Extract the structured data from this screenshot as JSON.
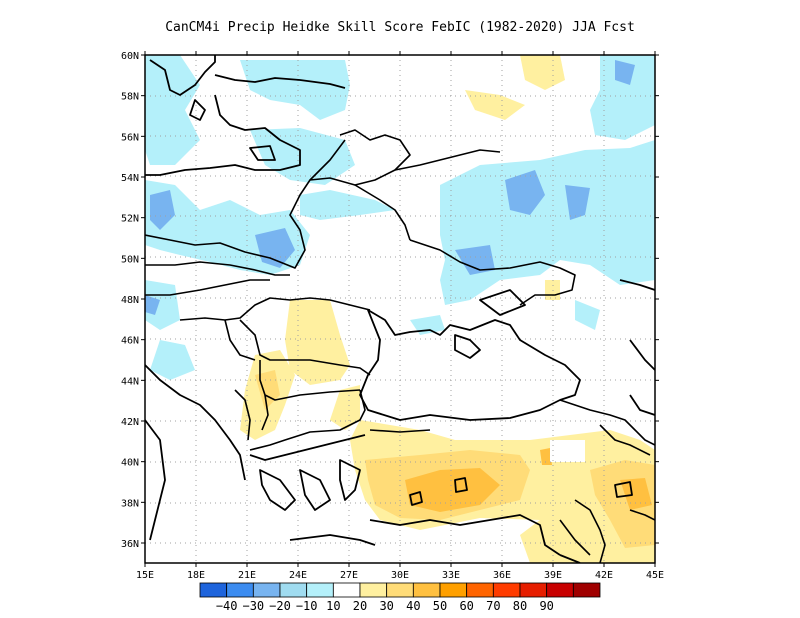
{
  "title": "CanCM4i Precip Heidke Skill Score FebIC (1982-2020) JJA Fcst",
  "lon_ticks": [
    "15E",
    "18E",
    "21E",
    "24E",
    "27E",
    "30E",
    "33E",
    "36E",
    "39E",
    "42E",
    "45E"
  ],
  "lat_ticks": [
    "60N",
    "58N",
    "56N",
    "54N",
    "52N",
    "50N",
    "48N",
    "46N",
    "44N",
    "42N",
    "40N",
    "38N",
    "36N"
  ],
  "colorbar": {
    "colors": [
      "#1e64dc",
      "#3c8cf0",
      "#78b4f0",
      "#a0dcf0",
      "#b4f0fa",
      "#ffffff",
      "#fff0a0",
      "#ffdc78",
      "#ffc040",
      "#ffa000",
      "#ff6400",
      "#ff3c00",
      "#e61e00",
      "#c80000",
      "#a00000"
    ],
    "labels": [
      "-40",
      "-30",
      "-20",
      "-10",
      "10",
      "20",
      "30",
      "40",
      "50",
      "60",
      "70",
      "80",
      "90"
    ]
  },
  "colors": {
    "light_blue": "#b4f0fa",
    "mid_blue": "#78b4f0",
    "pale_yellow": "#fff0a0",
    "yellow": "#ffdc78",
    "orange": "#ffc040"
  }
}
